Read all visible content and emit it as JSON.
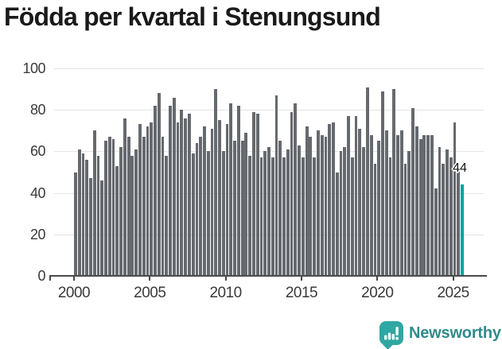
{
  "title": "Födda per kvartal i Stenungsund",
  "chart_data": {
    "type": "bar",
    "title": "Födda per kvartal i Stenungsund",
    "x_start": "2000-Q1",
    "x_end": "2025-Q3",
    "values": [
      50,
      61,
      59,
      56,
      47,
      70,
      58,
      46,
      65,
      67,
      66,
      53,
      62,
      76,
      67,
      58,
      61,
      73,
      67,
      72,
      74,
      82,
      88,
      67,
      58,
      82,
      86,
      74,
      80,
      76,
      78,
      59,
      64,
      67,
      72,
      60,
      71,
      90,
      75,
      60,
      73,
      83,
      65,
      82,
      65,
      69,
      58,
      79,
      78,
      57,
      60,
      62,
      57,
      87,
      65,
      57,
      61,
      79,
      83,
      63,
      57,
      72,
      67,
      57,
      70,
      68,
      67,
      73,
      74,
      50,
      60,
      62,
      77,
      57,
      77,
      71,
      62,
      91,
      68,
      54,
      65,
      89,
      70,
      57,
      90,
      68,
      70,
      54,
      60,
      81,
      72,
      66,
      68,
      68,
      68,
      42,
      62,
      54,
      61,
      57,
      74,
      53,
      44
    ],
    "highlight_last_value": 44,
    "last_value_label": "44",
    "ylim": [
      0,
      100
    ],
    "yticks": [
      0,
      20,
      40,
      60,
      80,
      100
    ],
    "xticks": [
      {
        "label": "2000",
        "bar_index": 0
      },
      {
        "label": "2005",
        "bar_index": 20
      },
      {
        "label": "2010",
        "bar_index": 40
      },
      {
        "label": "2015",
        "bar_index": 60
      },
      {
        "label": "2020",
        "bar_index": 80
      },
      {
        "label": "2025",
        "bar_index": 100
      }
    ],
    "bar_color": "#66696E",
    "highlight_color": "#00A5A1",
    "grid": true,
    "legend": "none"
  },
  "footer": {
    "brand": "Newsworthy",
    "logo_icon": "newsworthy-bar-chart-bubble-icon"
  }
}
